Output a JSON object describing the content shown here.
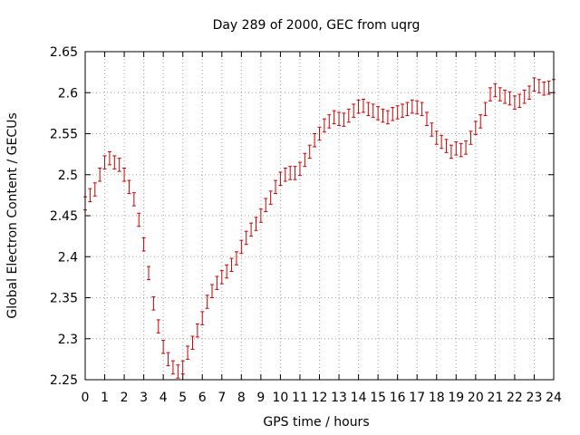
{
  "chart_data": {
    "type": "scatter",
    "title": "Day 289 of 2000, GEC from uqrg",
    "xlabel": "GPS time / hours",
    "ylabel": "Global Electron Content / GECUs",
    "xlim": [
      0,
      24
    ],
    "ylim": [
      2.25,
      2.65
    ],
    "x_ticks": [
      "0",
      "1",
      "2",
      "3",
      "4",
      "5",
      "6",
      "7",
      "8",
      "9",
      "10",
      "11",
      "12",
      "13",
      "14",
      "15",
      "16",
      "17",
      "18",
      "19",
      "20",
      "21",
      "22",
      "23",
      "24"
    ],
    "y_ticks": [
      "2.25",
      "2.3",
      "2.35",
      "2.4",
      "2.45",
      "2.5",
      "2.55",
      "2.6",
      "2.65"
    ],
    "grid": true,
    "error_bars": true,
    "color": "#cc0000",
    "series": [
      {
        "x": [
          0,
          0.25,
          0.5,
          0.75,
          1,
          1.25,
          1.5,
          1.75,
          2,
          2.25,
          2.5,
          2.75,
          3,
          3.25,
          3.5,
          3.75,
          4,
          4.25,
          4.5,
          4.75,
          5,
          5.25,
          5.5,
          5.75,
          6,
          6.25,
          6.5,
          6.75,
          7,
          7.25,
          7.5,
          7.75,
          8,
          8.25,
          8.5,
          8.75,
          9,
          9.25,
          9.5,
          9.75,
          10,
          10.25,
          10.5,
          10.75,
          11,
          11.25,
          11.5,
          11.75,
          12,
          12.25,
          12.5,
          12.75,
          13,
          13.25,
          13.5,
          13.75,
          14,
          14.25,
          14.5,
          14.75,
          15,
          15.25,
          15.5,
          15.75,
          16,
          16.25,
          16.5,
          16.75,
          17,
          17.25,
          17.5,
          17.75,
          18,
          18.25,
          18.5,
          18.75,
          19,
          19.25,
          19.5,
          19.75,
          20,
          20.25,
          20.5,
          20.75,
          21,
          21.25,
          21.5,
          21.75,
          22,
          22.25,
          22.5,
          22.75,
          23,
          23.25,
          23.5,
          23.75,
          24
        ],
        "y": [
          2.465,
          2.475,
          2.482,
          2.5,
          2.515,
          2.52,
          2.515,
          2.512,
          2.5,
          2.485,
          2.47,
          2.445,
          2.415,
          2.38,
          2.343,
          2.315,
          2.29,
          2.275,
          2.265,
          2.26,
          2.265,
          2.283,
          2.295,
          2.31,
          2.325,
          2.345,
          2.358,
          2.368,
          2.375,
          2.382,
          2.39,
          2.398,
          2.412,
          2.423,
          2.433,
          2.44,
          2.45,
          2.463,
          2.472,
          2.485,
          2.495,
          2.5,
          2.502,
          2.502,
          2.507,
          2.518,
          2.528,
          2.542,
          2.55,
          2.56,
          2.565,
          2.57,
          2.568,
          2.567,
          2.572,
          2.578,
          2.583,
          2.584,
          2.58,
          2.578,
          2.575,
          2.572,
          2.57,
          2.574,
          2.576,
          2.578,
          2.58,
          2.583,
          2.582,
          2.58,
          2.568,
          2.555,
          2.545,
          2.54,
          2.535,
          2.528,
          2.532,
          2.53,
          2.533,
          2.545,
          2.557,
          2.565,
          2.58,
          2.598,
          2.603,
          2.598,
          2.595,
          2.593,
          2.588,
          2.59,
          2.595,
          2.6,
          2.61,
          2.608,
          2.605,
          2.606,
          2.608
        ],
        "err": 0.008
      }
    ]
  }
}
